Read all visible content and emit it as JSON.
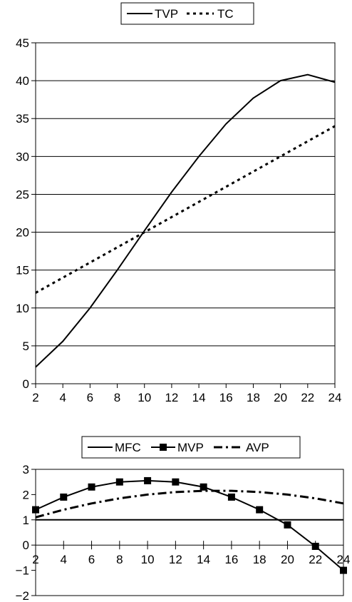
{
  "chart_data": [
    {
      "type": "line",
      "x": [
        2,
        4,
        6,
        8,
        10,
        12,
        14,
        16,
        18,
        20,
        22,
        24
      ],
      "xticks": [
        "2",
        "4",
        "6",
        "8",
        "10",
        "12",
        "14",
        "16",
        "18",
        "20",
        "22",
        "24"
      ],
      "ylim": [
        0,
        45
      ],
      "yticks": [
        "0",
        "5",
        "10",
        "15",
        "20",
        "25",
        "30",
        "35",
        "40",
        "45"
      ],
      "grid": "horizontal",
      "legend": "top-center",
      "series": [
        {
          "name": "TVP",
          "style": "solid",
          "color": "#000000",
          "values": [
            2.2,
            5.6,
            10.0,
            15.0,
            20.2,
            25.3,
            30.0,
            34.3,
            37.7,
            40.0,
            40.8,
            39.8
          ]
        },
        {
          "name": "TC",
          "style": "dotted",
          "color": "#000000",
          "values": [
            12.0,
            14.0,
            16.0,
            18.0,
            20.0,
            22.0,
            24.0,
            26.0,
            28.0,
            30.0,
            32.0,
            34.0
          ]
        }
      ]
    },
    {
      "type": "line",
      "x": [
        2,
        4,
        6,
        8,
        10,
        12,
        14,
        16,
        18,
        20,
        22,
        24
      ],
      "xticks": [
        "2",
        "4",
        "6",
        "8",
        "10",
        "12",
        "14",
        "16",
        "18",
        "20",
        "22",
        "24"
      ],
      "ylim": [
        -2,
        3
      ],
      "yticks": [
        "−2",
        "−1",
        "0",
        "1",
        "2",
        "3"
      ],
      "grid": "none",
      "legend": "top-center",
      "series": [
        {
          "name": "MFC",
          "style": "solid",
          "color": "#000000",
          "values": [
            1,
            1,
            1,
            1,
            1,
            1,
            1,
            1,
            1,
            1,
            1,
            1
          ]
        },
        {
          "name": "MVP",
          "style": "solid-square-markers",
          "color": "#000000",
          "values": [
            1.4,
            1.9,
            2.3,
            2.5,
            2.55,
            2.5,
            2.3,
            1.9,
            1.4,
            0.8,
            -0.05,
            -1.0
          ]
        },
        {
          "name": "AVP",
          "style": "dash-dot",
          "color": "#000000",
          "values": [
            1.1,
            1.4,
            1.65,
            1.85,
            2.0,
            2.1,
            2.15,
            2.15,
            2.1,
            2.0,
            1.85,
            1.65
          ]
        }
      ]
    }
  ]
}
